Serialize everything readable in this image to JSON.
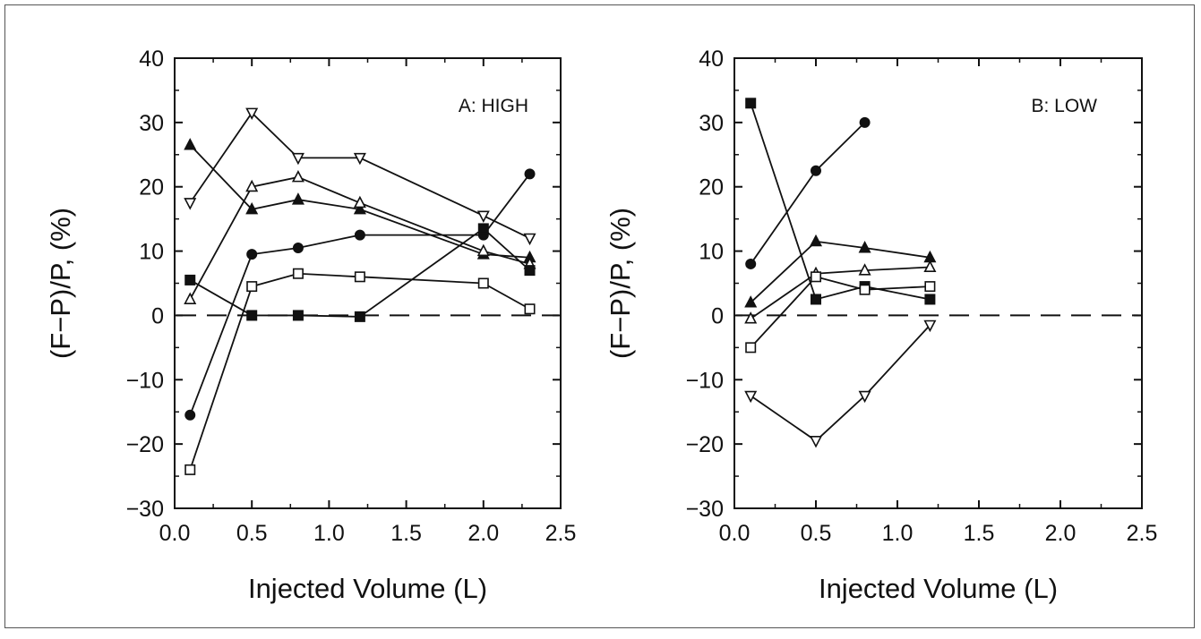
{
  "chart_data": [
    {
      "type": "line",
      "annotation": "A: HIGH",
      "xlabel": "Injected Volume (L)",
      "ylabel": "(F−P)/P, (%)",
      "xlim": [
        0.0,
        2.5
      ],
      "ylim": [
        -30,
        40
      ],
      "xticks": [
        "0.0",
        "0.5",
        "1.0",
        "1.5",
        "2.0",
        "2.5"
      ],
      "yticks": [
        "40",
        "30",
        "20",
        "10",
        "0",
        "−10",
        "−20",
        "−30"
      ],
      "reference_line": {
        "y": 0,
        "style": "dashed"
      },
      "grid": false,
      "series": [
        {
          "marker": "triangle-down-open",
          "x": [
            0.1,
            0.5,
            0.8,
            1.2,
            2.0,
            2.3
          ],
          "y": [
            17.5,
            31.5,
            24.5,
            24.5,
            15.5,
            12
          ]
        },
        {
          "marker": "triangle-up-filled",
          "x": [
            0.1,
            0.5,
            0.8,
            1.2,
            2.0,
            2.3
          ],
          "y": [
            26.5,
            16.5,
            18,
            16.5,
            9.5,
            9
          ]
        },
        {
          "marker": "triangle-up-open",
          "x": [
            0.1,
            0.5,
            0.8,
            1.2,
            2.0,
            2.3
          ],
          "y": [
            2.5,
            20,
            21.5,
            17.5,
            10,
            8
          ]
        },
        {
          "marker": "circle-filled",
          "x": [
            0.1,
            0.5,
            0.8,
            1.2,
            2.0,
            2.3
          ],
          "y": [
            -15.5,
            9.5,
            10.5,
            12.5,
            12.5,
            22
          ]
        },
        {
          "marker": "square-open",
          "x": [
            0.1,
            0.5,
            0.8,
            1.2,
            2.0,
            2.3
          ],
          "y": [
            -24,
            4.5,
            6.5,
            6,
            5,
            1
          ]
        },
        {
          "marker": "square-filled",
          "x": [
            0.1,
            0.5,
            0.8,
            1.2,
            2.0,
            2.3
          ],
          "y": [
            5.5,
            0,
            0,
            -0.2,
            13.5,
            7
          ]
        }
      ]
    },
    {
      "type": "line",
      "annotation": "B: LOW",
      "xlabel": "Injected Volume (L)",
      "ylabel": "(F−P)/P, (%)",
      "xlim": [
        0.0,
        2.5
      ],
      "ylim": [
        -30,
        40
      ],
      "xticks": [
        "0.0",
        "0.5",
        "1.0",
        "1.5",
        "2.0",
        "2.5"
      ],
      "yticks": [
        "40",
        "30",
        "20",
        "10",
        "0",
        "−10",
        "−20",
        "−30"
      ],
      "reference_line": {
        "y": 0,
        "style": "dashed"
      },
      "grid": false,
      "series": [
        {
          "marker": "circle-filled",
          "x": [
            0.1,
            0.5,
            0.8
          ],
          "y": [
            8,
            22.5,
            30
          ]
        },
        {
          "marker": "square-filled",
          "x": [
            0.1,
            0.5,
            0.8,
            1.2
          ],
          "y": [
            33,
            2.5,
            4.5,
            2.5
          ]
        },
        {
          "marker": "triangle-up-filled",
          "x": [
            0.1,
            0.5,
            0.8,
            1.2
          ],
          "y": [
            2,
            11.5,
            10.5,
            9
          ]
        },
        {
          "marker": "triangle-up-open",
          "x": [
            0.1,
            0.5,
            0.8,
            1.2
          ],
          "y": [
            -0.5,
            6.5,
            7,
            7.5
          ]
        },
        {
          "marker": "square-open",
          "x": [
            0.1,
            0.5,
            0.8,
            1.2
          ],
          "y": [
            -5,
            6,
            4,
            4.5
          ]
        },
        {
          "marker": "triangle-down-open",
          "x": [
            0.1,
            0.5,
            0.8,
            1.2
          ],
          "y": [
            -12.5,
            -19.5,
            -12.5,
            -1.5
          ]
        }
      ]
    }
  ]
}
